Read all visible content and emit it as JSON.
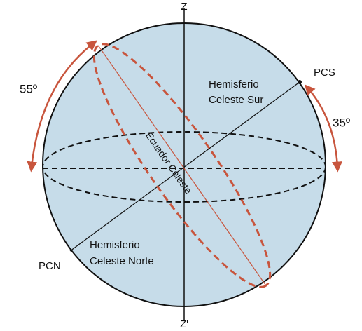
{
  "axis": {
    "top": "Z",
    "bottom": "Z'"
  },
  "poles": {
    "south": "PCS",
    "north": "PCN"
  },
  "angles": {
    "left": "55º",
    "right": "35º"
  },
  "regions": {
    "south": [
      "Hemisferio",
      "Celeste Sur"
    ],
    "north": [
      "Hemisferio",
      "Celeste Norte"
    ]
  },
  "equator": "Ecuador Celeste"
}
